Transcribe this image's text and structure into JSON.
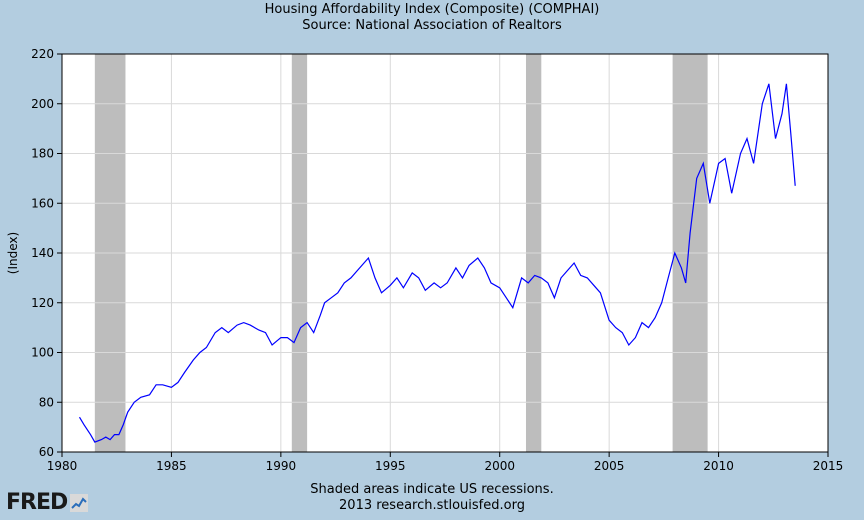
{
  "header": {
    "title": "Housing Affordability Index (Composite) (COMPHAI)",
    "source": "Source: National Association of Realtors"
  },
  "footer": {
    "note": "Shaded areas indicate US recessions.",
    "credit": "2013 research.stlouisfed.org"
  },
  "logo": {
    "text": "FRED"
  },
  "colors": {
    "line": "#0000ff",
    "recession": "#bdbdbd",
    "background": "#b3cde0",
    "plot": "#ffffff",
    "grid": "#d9d9d9"
  },
  "chart_data": {
    "type": "line",
    "title": "Housing Affordability Index (Composite) (COMPHAI)",
    "subtitle": "Source: National Association of Realtors",
    "ylabel": "(Index)",
    "xlim": [
      1980,
      2015
    ],
    "ylim": [
      60,
      220
    ],
    "xticks": [
      1980,
      1985,
      1990,
      1995,
      2000,
      2005,
      2010,
      2015
    ],
    "yticks": [
      60,
      80,
      100,
      120,
      140,
      160,
      180,
      200,
      220
    ],
    "grid": true,
    "recessions": [
      [
        1981.5,
        1982.9
      ],
      [
        1990.5,
        1991.2
      ],
      [
        2001.2,
        2001.9
      ],
      [
        2007.9,
        2009.5
      ]
    ],
    "series": [
      {
        "points": [
          [
            1980.8,
            74
          ],
          [
            1981.0,
            71
          ],
          [
            1981.3,
            67
          ],
          [
            1981.5,
            64
          ],
          [
            1981.8,
            65
          ],
          [
            1982.0,
            66
          ],
          [
            1982.2,
            65
          ],
          [
            1982.4,
            67
          ],
          [
            1982.6,
            67
          ],
          [
            1982.8,
            71
          ],
          [
            1983.0,
            76
          ],
          [
            1983.3,
            80
          ],
          [
            1983.6,
            82
          ],
          [
            1984.0,
            83
          ],
          [
            1984.3,
            87
          ],
          [
            1984.6,
            87
          ],
          [
            1985.0,
            86
          ],
          [
            1985.3,
            88
          ],
          [
            1985.6,
            92
          ],
          [
            1986.0,
            97
          ],
          [
            1986.3,
            100
          ],
          [
            1986.6,
            102
          ],
          [
            1987.0,
            108
          ],
          [
            1987.3,
            110
          ],
          [
            1987.6,
            108
          ],
          [
            1988.0,
            111
          ],
          [
            1988.3,
            112
          ],
          [
            1988.6,
            111
          ],
          [
            1989.0,
            109
          ],
          [
            1989.3,
            108
          ],
          [
            1989.6,
            103
          ],
          [
            1990.0,
            106
          ],
          [
            1990.3,
            106
          ],
          [
            1990.6,
            104
          ],
          [
            1990.9,
            110
          ],
          [
            1991.2,
            112
          ],
          [
            1991.5,
            108
          ],
          [
            1991.8,
            115
          ],
          [
            1992.0,
            120
          ],
          [
            1992.3,
            122
          ],
          [
            1992.6,
            124
          ],
          [
            1992.9,
            128
          ],
          [
            1993.2,
            130
          ],
          [
            1993.5,
            133
          ],
          [
            1993.8,
            136
          ],
          [
            1994.0,
            138
          ],
          [
            1994.3,
            130
          ],
          [
            1994.6,
            124
          ],
          [
            1995.0,
            127
          ],
          [
            1995.3,
            130
          ],
          [
            1995.6,
            126
          ],
          [
            1996.0,
            132
          ],
          [
            1996.3,
            130
          ],
          [
            1996.6,
            125
          ],
          [
            1997.0,
            128
          ],
          [
            1997.3,
            126
          ],
          [
            1997.6,
            128
          ],
          [
            1998.0,
            134
          ],
          [
            1998.3,
            130
          ],
          [
            1998.6,
            135
          ],
          [
            1999.0,
            138
          ],
          [
            1999.3,
            134
          ],
          [
            1999.6,
            128
          ],
          [
            2000.0,
            126
          ],
          [
            2000.3,
            122
          ],
          [
            2000.6,
            118
          ],
          [
            2001.0,
            130
          ],
          [
            2001.3,
            128
          ],
          [
            2001.6,
            131
          ],
          [
            2001.9,
            130
          ],
          [
            2002.2,
            128
          ],
          [
            2002.5,
            122
          ],
          [
            2002.8,
            130
          ],
          [
            2003.1,
            133
          ],
          [
            2003.4,
            136
          ],
          [
            2003.7,
            131
          ],
          [
            2004.0,
            130
          ],
          [
            2004.3,
            127
          ],
          [
            2004.6,
            124
          ],
          [
            2005.0,
            113
          ],
          [
            2005.3,
            110
          ],
          [
            2005.6,
            108
          ],
          [
            2005.9,
            103
          ],
          [
            2006.2,
            106
          ],
          [
            2006.5,
            112
          ],
          [
            2006.8,
            110
          ],
          [
            2007.1,
            114
          ],
          [
            2007.4,
            120
          ],
          [
            2007.7,
            130
          ],
          [
            2008.0,
            140
          ],
          [
            2008.3,
            134
          ],
          [
            2008.5,
            128
          ],
          [
            2008.7,
            148
          ],
          [
            2009.0,
            170
          ],
          [
            2009.3,
            176
          ],
          [
            2009.6,
            160
          ],
          [
            2010.0,
            176
          ],
          [
            2010.3,
            178
          ],
          [
            2010.6,
            164
          ],
          [
            2011.0,
            180
          ],
          [
            2011.3,
            186
          ],
          [
            2011.6,
            176
          ],
          [
            2012.0,
            200
          ],
          [
            2012.3,
            208
          ],
          [
            2012.6,
            186
          ],
          [
            2012.9,
            196
          ],
          [
            2013.1,
            208
          ],
          [
            2013.3,
            188
          ],
          [
            2013.5,
            167
          ]
        ]
      }
    ]
  }
}
